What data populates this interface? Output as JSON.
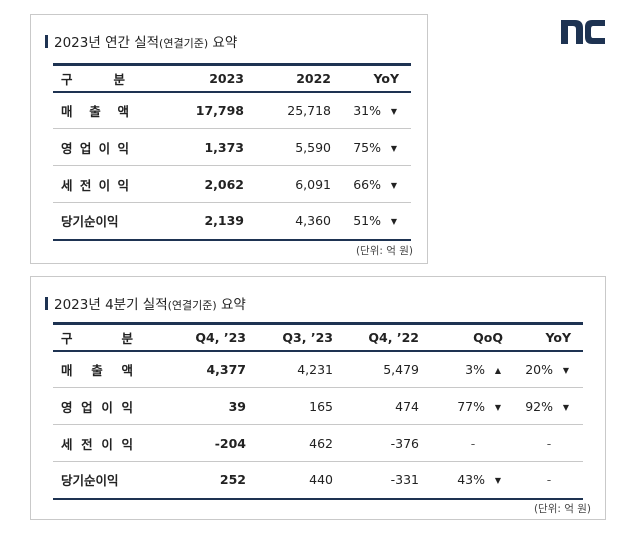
{
  "annual": {
    "title": "2023년 연간 실적",
    "title_paren": "(연결기준)",
    "title_suffix": " 요약",
    "header": {
      "label_a": "구",
      "label_b": "분",
      "c1": "2023",
      "c2": "2022",
      "c3": "YoY"
    },
    "rows": [
      {
        "label": "매출액",
        "v2023": "17,798",
        "v2022": "25,718",
        "yoy": "31%",
        "yoy_arrow": "▼"
      },
      {
        "label": "영업이익",
        "v2023": "1,373",
        "v2022": "5,590",
        "yoy": "75%",
        "yoy_arrow": "▼"
      },
      {
        "label": "세전이익",
        "v2023": "2,062",
        "v2022": "6,091",
        "yoy": "66%",
        "yoy_arrow": "▼"
      },
      {
        "label": "당기순이익",
        "v2023": "2,139",
        "v2022": "4,360",
        "yoy": "51%",
        "yoy_arrow": "▼"
      }
    ],
    "unit": "(단위: 억 원)"
  },
  "quarterly": {
    "title": "2023년 4분기 실적",
    "title_paren": "(연결기준)",
    "title_suffix": " 요약",
    "header": {
      "label_a": "구",
      "label_b": "분",
      "c1": "Q4, ’23",
      "c2": "Q3, ’23",
      "c3": "Q4, ’22",
      "c4": "QoQ",
      "c5": "YoY"
    },
    "rows": [
      {
        "label": "매출액",
        "q4_23": "4,377",
        "q3_23": "4,231",
        "q4_22": "5,479",
        "qoq": "3%",
        "qoq_arrow": "▲",
        "yoy": "20%",
        "yoy_arrow": "▼"
      },
      {
        "label": "영업이익",
        "q4_23": "39",
        "q3_23": "165",
        "q4_22": "474",
        "qoq": "77%",
        "qoq_arrow": "▼",
        "yoy": "92%",
        "yoy_arrow": "▼"
      },
      {
        "label": "세전이익",
        "q4_23": "-204",
        "q3_23": "462",
        "q4_22": "-376",
        "qoq": "-",
        "yoy": "-"
      },
      {
        "label": "당기순이익",
        "q4_23": "252",
        "q3_23": "440",
        "q4_22": "-331",
        "qoq": "43%",
        "qoq_arrow": "▼",
        "yoy": "-"
      }
    ],
    "unit": "(단위: 억 원)"
  },
  "brand": {
    "logo_text": "nc",
    "logo_color": "#1e3352",
    "accent": "#1e3352"
  }
}
